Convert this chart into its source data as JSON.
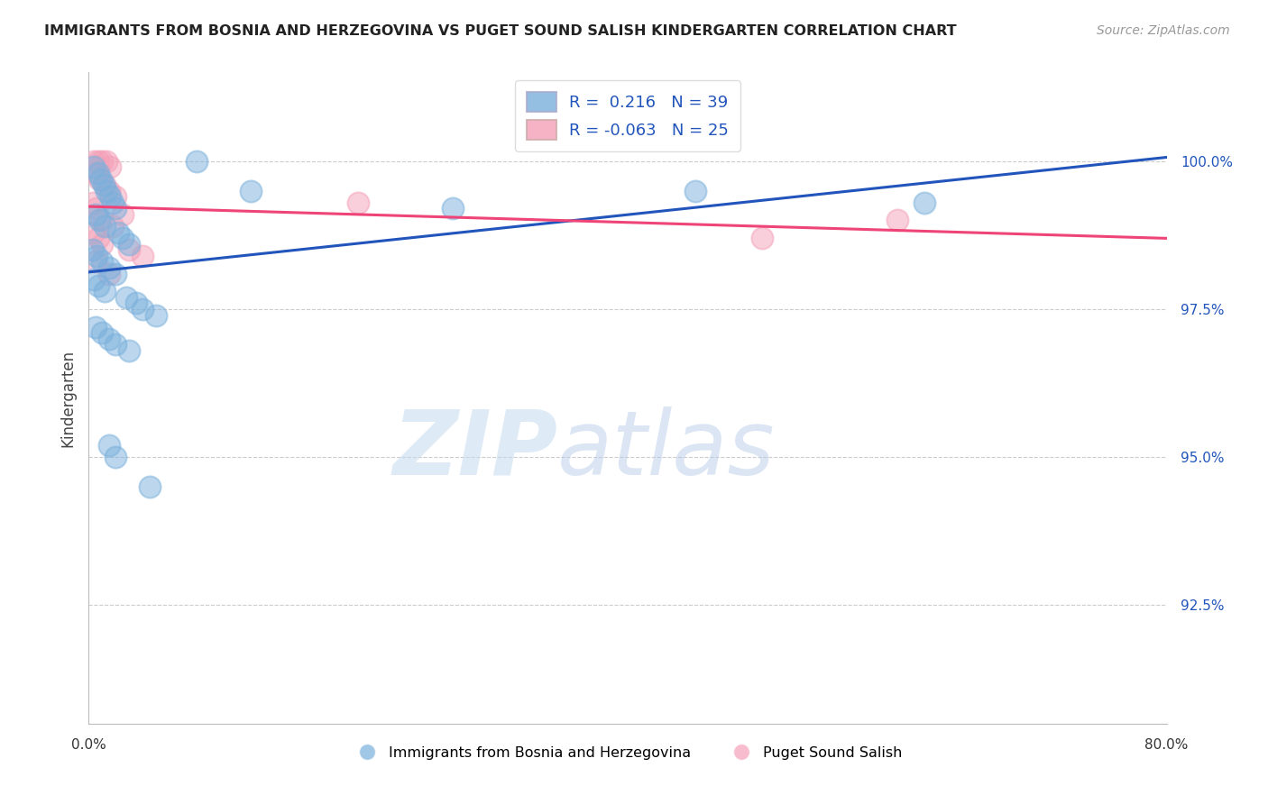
{
  "title": "IMMIGRANTS FROM BOSNIA AND HERZEGOVINA VS PUGET SOUND SALISH KINDERGARTEN CORRELATION CHART",
  "source": "Source: ZipAtlas.com",
  "ylabel": "Kindergarten",
  "xlim": [
    0.0,
    80.0
  ],
  "ylim": [
    90.5,
    101.5
  ],
  "yticks": [
    92.5,
    95.0,
    97.5,
    100.0
  ],
  "ytick_labels": [
    "92.5%",
    "95.0%",
    "97.5%",
    "100.0%"
  ],
  "R_blue": 0.216,
  "N_blue": 39,
  "R_pink": -0.063,
  "N_pink": 25,
  "legend_label_blue": "Immigrants from Bosnia and Herzegovina",
  "legend_label_pink": "Puget Sound Salish",
  "color_blue": "#7ab0dc",
  "color_pink": "#f4a0b8",
  "trendline_blue": "#2255bb",
  "trendline_pink": "#ee4477",
  "background_color": "#ffffff",
  "blue_points": [
    [
      0.4,
      99.9
    ],
    [
      0.7,
      99.8
    ],
    [
      0.9,
      99.7
    ],
    [
      1.1,
      99.6
    ],
    [
      1.3,
      99.5
    ],
    [
      1.6,
      99.4
    ],
    [
      1.8,
      99.3
    ],
    [
      2.0,
      99.2
    ],
    [
      0.5,
      99.1
    ],
    [
      0.8,
      99.0
    ],
    [
      1.2,
      98.9
    ],
    [
      2.2,
      98.8
    ],
    [
      2.5,
      98.7
    ],
    [
      3.0,
      98.6
    ],
    [
      0.3,
      98.5
    ],
    [
      0.6,
      98.4
    ],
    [
      1.0,
      98.3
    ],
    [
      1.5,
      98.2
    ],
    [
      2.0,
      98.1
    ],
    [
      0.4,
      98.0
    ],
    [
      0.7,
      97.9
    ],
    [
      1.2,
      97.8
    ],
    [
      2.8,
      97.7
    ],
    [
      3.5,
      97.6
    ],
    [
      4.0,
      97.5
    ],
    [
      5.0,
      97.4
    ],
    [
      0.5,
      97.2
    ],
    [
      1.0,
      97.1
    ],
    [
      1.5,
      97.0
    ],
    [
      2.0,
      96.9
    ],
    [
      3.0,
      96.8
    ],
    [
      1.5,
      95.2
    ],
    [
      2.0,
      95.0
    ],
    [
      4.5,
      94.5
    ],
    [
      8.0,
      100.0
    ],
    [
      12.0,
      99.5
    ],
    [
      27.0,
      99.2
    ],
    [
      45.0,
      99.5
    ],
    [
      62.0,
      99.3
    ]
  ],
  "pink_points": [
    [
      0.4,
      100.0
    ],
    [
      0.7,
      100.0
    ],
    [
      1.0,
      100.0
    ],
    [
      1.3,
      100.0
    ],
    [
      1.6,
      99.9
    ],
    [
      0.5,
      99.8
    ],
    [
      0.8,
      99.7
    ],
    [
      1.2,
      99.6
    ],
    [
      1.5,
      99.5
    ],
    [
      2.0,
      99.4
    ],
    [
      0.3,
      99.3
    ],
    [
      0.6,
      99.2
    ],
    [
      2.5,
      99.1
    ],
    [
      0.9,
      99.0
    ],
    [
      1.8,
      98.9
    ],
    [
      0.4,
      98.8
    ],
    [
      0.7,
      98.7
    ],
    [
      1.0,
      98.6
    ],
    [
      3.0,
      98.5
    ],
    [
      4.0,
      98.4
    ],
    [
      0.5,
      98.3
    ],
    [
      1.5,
      98.1
    ],
    [
      20.0,
      99.3
    ],
    [
      60.0,
      99.0
    ],
    [
      50.0,
      98.7
    ]
  ]
}
